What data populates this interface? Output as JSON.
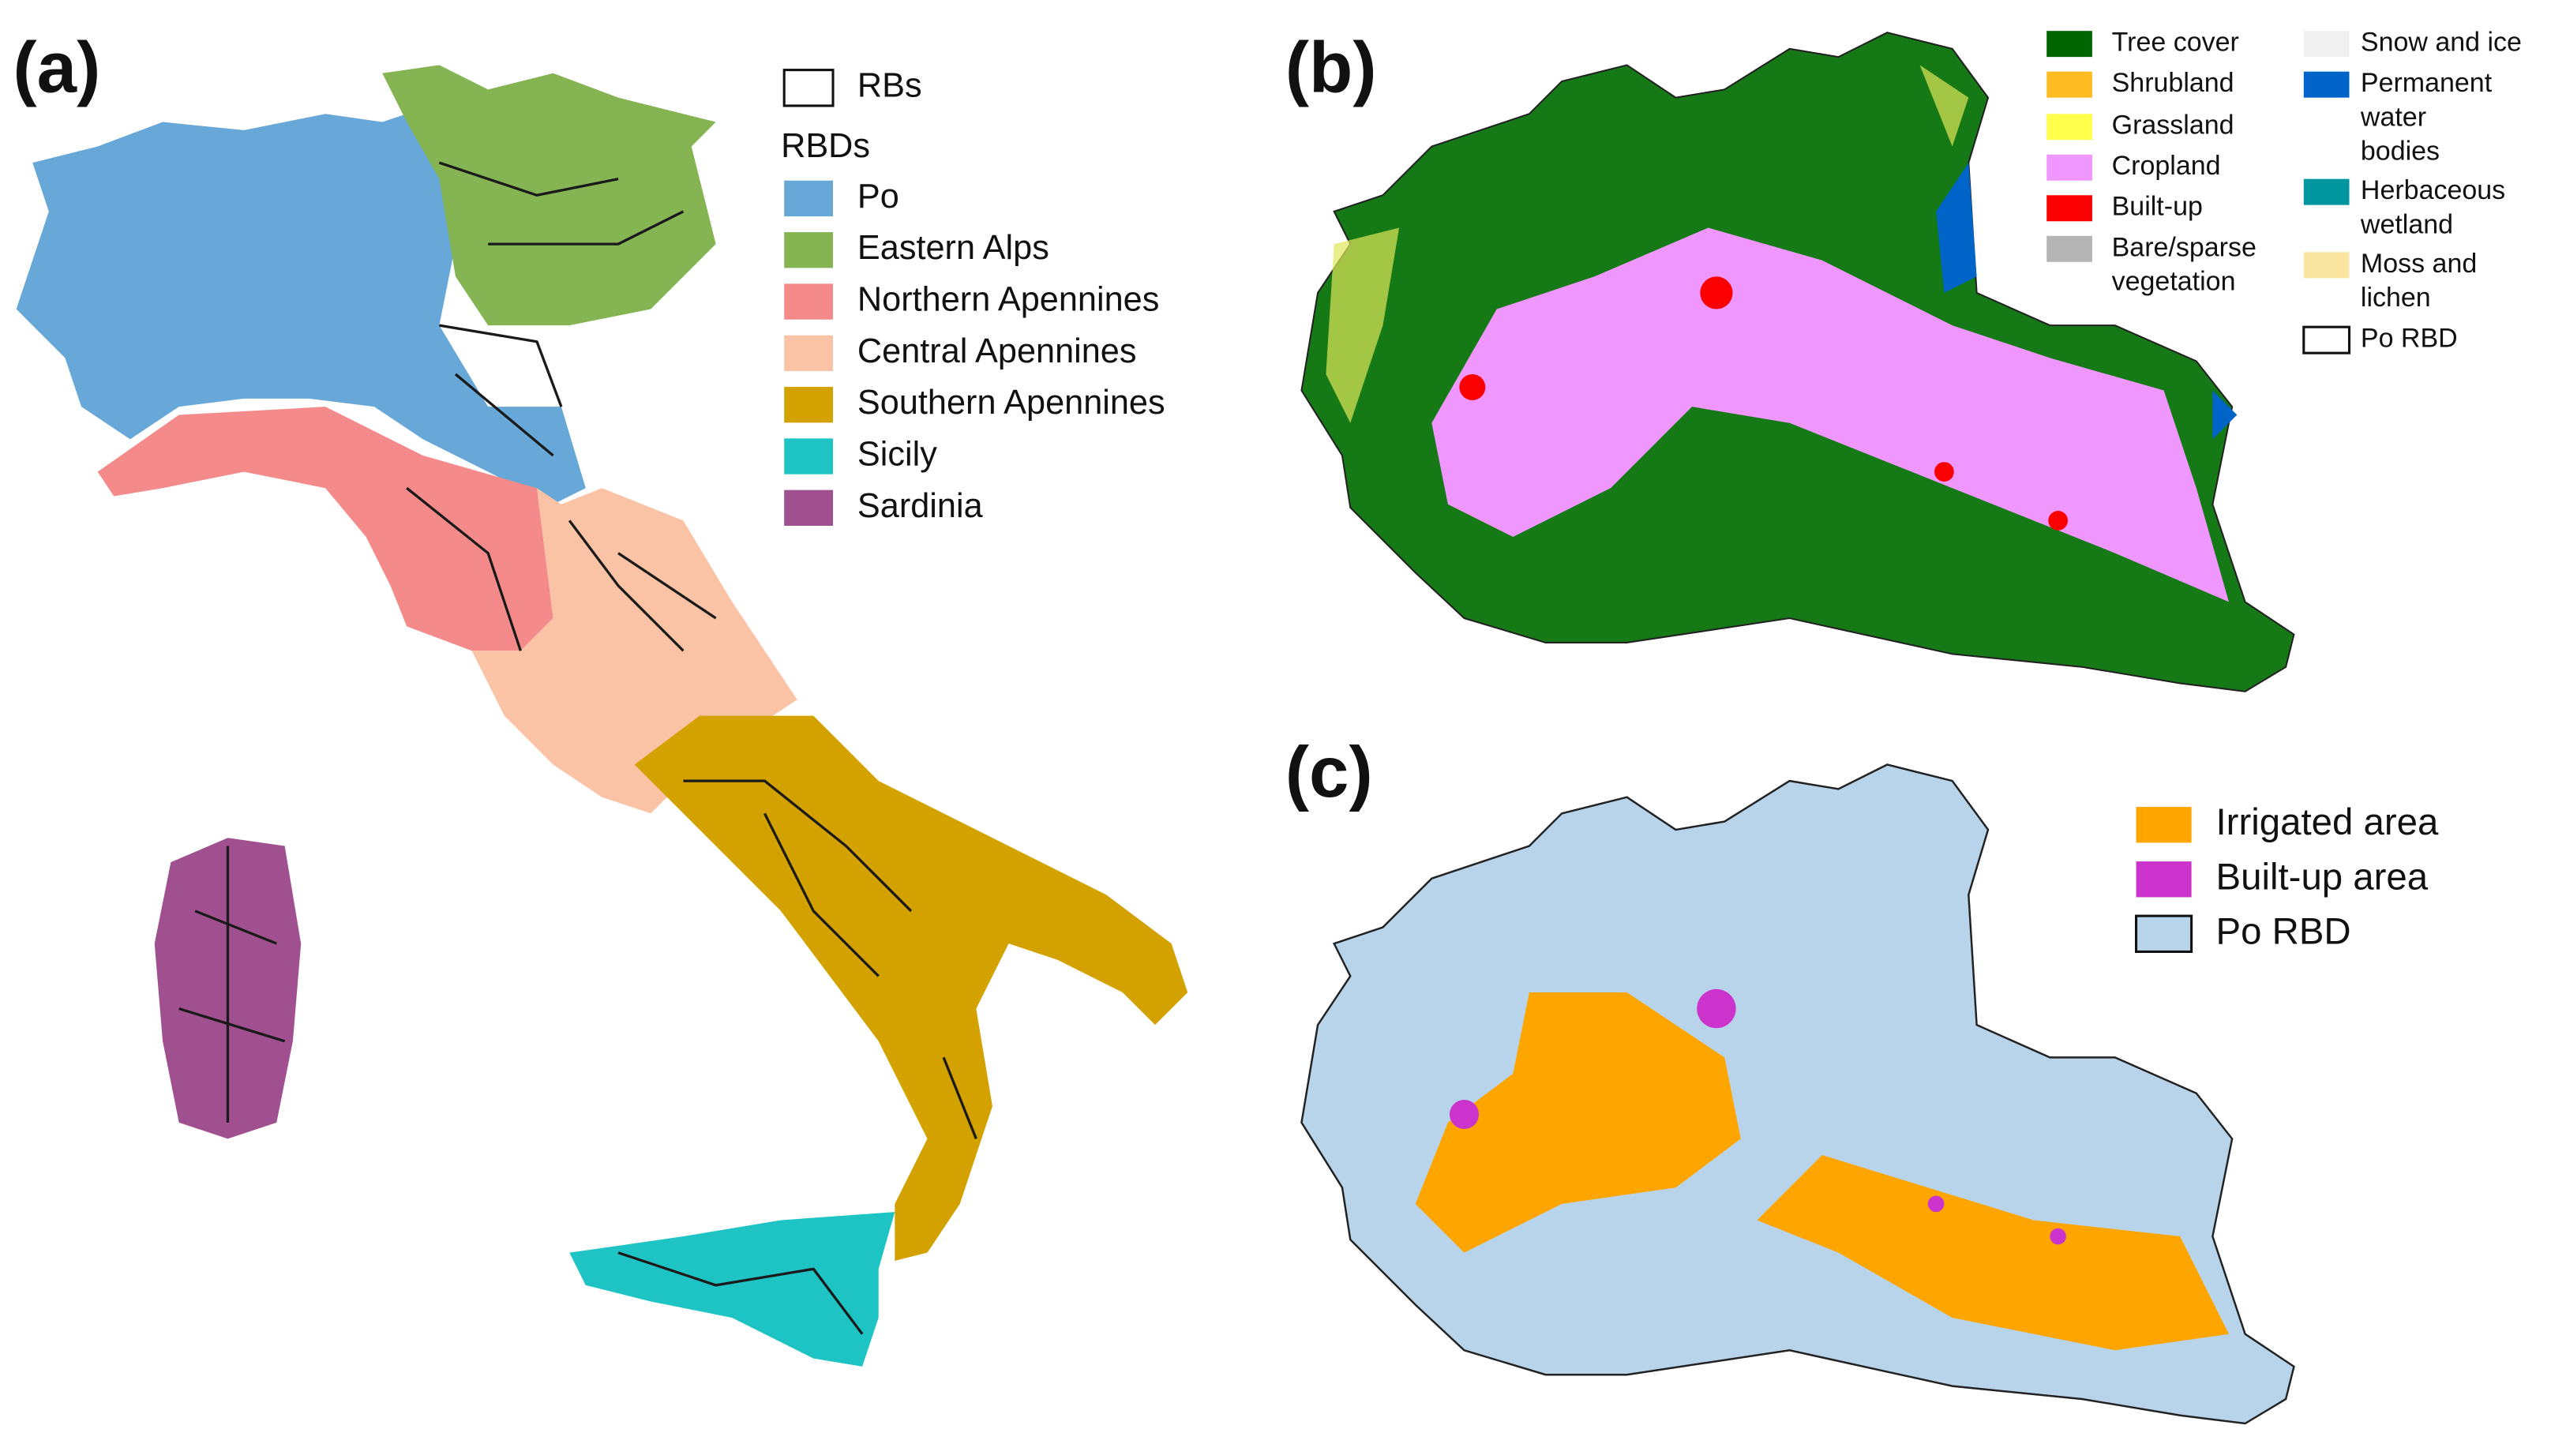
{
  "panels": [
    {
      "label": "(a)",
      "legend": {
        "outline_items": [
          "RBs"
        ],
        "title": "RBDs",
        "items": [
          {
            "label": [
              "Po"
            ],
            "color": "#68a8d8"
          },
          {
            "label": [
              "Eastern Alps"
            ],
            "color": "#84b552"
          },
          {
            "label": [
              "Northern Apennines"
            ],
            "color": "#f48a8a"
          },
          {
            "label": [
              "Central Apennines"
            ],
            "color": "#fbc3a6"
          },
          {
            "label": [
              "Southern Apennines"
            ],
            "color": "#d4a200"
          },
          {
            "label": [
              "Sicily"
            ],
            "color": "#1ec4c4"
          },
          {
            "label": [
              "Sardinia"
            ],
            "color": "#a0508e"
          }
        ]
      }
    },
    {
      "label": "(b)",
      "legend": {
        "items": [
          {
            "label": [
              "Tree cover"
            ],
            "color": "#006400"
          },
          {
            "label": [
              "Shrubland"
            ],
            "color": "#ffbb22"
          },
          {
            "label": [
              "Grassland"
            ],
            "color": "#ffff4c"
          },
          {
            "label": [
              "Cropland"
            ],
            "color": "#f096ff"
          },
          {
            "label": [
              "Built-up"
            ],
            "color": "#fa0000"
          },
          {
            "label": [
              "Bare/sparse",
              "vegetation"
            ],
            "color": "#b4b4b4"
          },
          {
            "label": [
              "Snow and ice"
            ],
            "color": "#f0f0f0"
          },
          {
            "label": [
              "Permanent",
              "water",
              "bodies"
            ],
            "color": "#0064c8"
          },
          {
            "label": [
              "Herbaceous",
              "wetland"
            ],
            "color": "#0096a0"
          },
          {
            "label": [
              "Moss and",
              "lichen"
            ],
            "color": "#fae6a0"
          }
        ],
        "outline_items": [
          "Po RBD"
        ]
      }
    },
    {
      "label": "(c)",
      "legend": {
        "items": [
          {
            "label": [
              "Irrigated area"
            ],
            "color": "#ffa500"
          },
          {
            "label": [
              "Built-up area"
            ],
            "color": "#cc33cc"
          },
          {
            "label": [
              "Po RBD"
            ],
            "color": "#b8d4ea"
          }
        ]
      }
    }
  ]
}
